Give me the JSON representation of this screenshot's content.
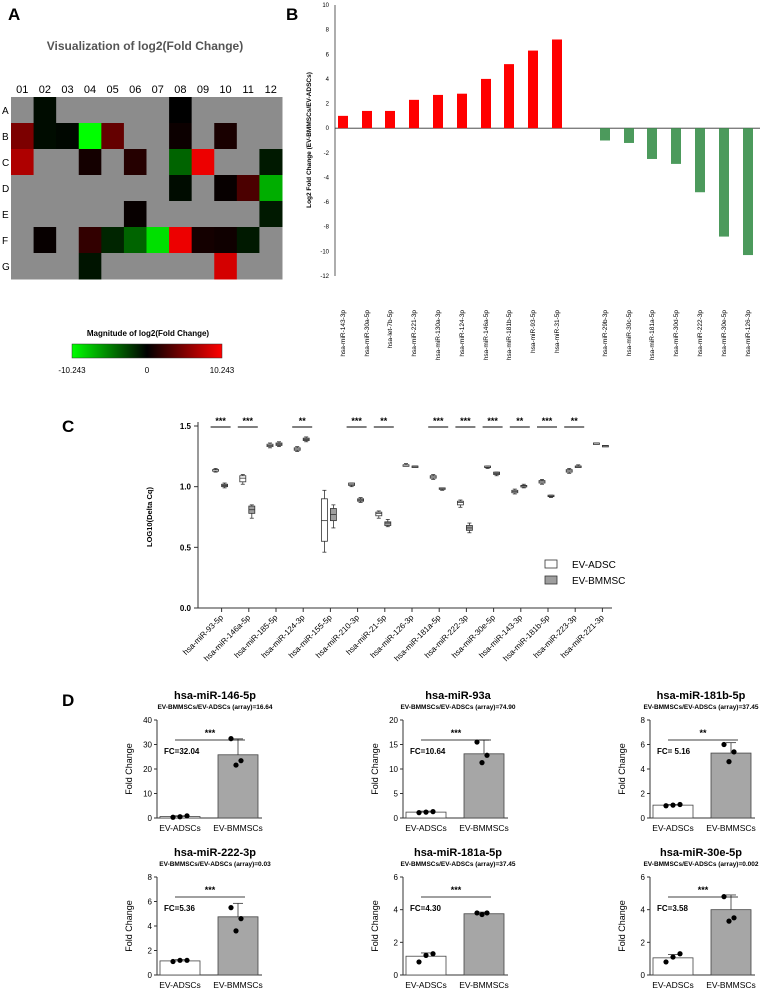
{
  "panel_labels": {
    "a": "A",
    "b": "B",
    "c": "C",
    "d": "D"
  },
  "chart_data": [
    {
      "type": "heatmap",
      "panel": "A",
      "title": "Visualization of log2(Fold Change)",
      "columns": [
        "01",
        "02",
        "03",
        "04",
        "05",
        "06",
        "07",
        "08",
        "09",
        "10",
        "11",
        "12"
      ],
      "rows": [
        "A",
        "B",
        "C",
        "D",
        "E",
        "F",
        "G"
      ],
      "values": [
        [
          null,
          -0.5,
          null,
          null,
          null,
          null,
          null,
          0,
          null,
          null,
          null,
          null
        ],
        [
          5,
          -0.5,
          -0.3,
          -10.243,
          4,
          null,
          null,
          0.5,
          null,
          1,
          null,
          null
        ],
        [
          7,
          null,
          null,
          0.8,
          null,
          1.5,
          null,
          -4,
          9.5,
          null,
          null,
          -1
        ],
        [
          null,
          null,
          null,
          null,
          null,
          null,
          null,
          -0.5,
          null,
          0.3,
          3,
          -7
        ],
        [
          null,
          null,
          null,
          null,
          null,
          0.3,
          null,
          null,
          null,
          null,
          null,
          -1
        ],
        [
          null,
          0.3,
          null,
          2,
          -1.5,
          -4,
          -9,
          9.5,
          0.8,
          0.6,
          -1,
          null
        ],
        [
          null,
          null,
          null,
          -0.8,
          null,
          null,
          null,
          null,
          null,
          8.5,
          null,
          null
        ]
      ],
      "legend_title": "Magnitude of log2(Fold Change)",
      "legend_min": "-10.243",
      "legend_mid": "0",
      "legend_max": "10.243",
      "colors": {
        "low": "#00ff00",
        "mid": "#000000",
        "high": "#ff0000",
        "na": "#8c8c8c"
      }
    },
    {
      "type": "bar",
      "panel": "B",
      "ylabel": "Log2 Fold Change (EV-BMMSCs/EV-ADSCs)",
      "ylim": [
        -12,
        10
      ],
      "yticks": [
        "10",
        "8",
        "6",
        "4",
        "2",
        "0",
        "-2",
        "-4",
        "-6",
        "-8",
        "-10",
        "-12"
      ],
      "categories": [
        "hsa-miR-143-3p",
        "hsa-miR-30a-5p",
        "hsa-let-7b-5p",
        "hsa-miR-221-3p",
        "hsa-miR-130a-3p",
        "hsa-miR-124-3p",
        "hsa-miR-146a-5p",
        "hsa-miR-181b-5p",
        "hsa-miR-93-5p",
        "hsa-miR-31-5p",
        "hsa-miR-29b-3p",
        "hsa-miR-30c-5p",
        "hsa-miR-181a-5p",
        "hsa-miR-30d-5p",
        "hsa-miR-222-3p",
        "hsa-miR-30e-5p",
        "hsa-miR-126-3p"
      ],
      "values": [
        1.0,
        1.4,
        1.4,
        2.3,
        2.7,
        2.8,
        4.0,
        5.2,
        6.3,
        7.2,
        -1.0,
        -1.2,
        -2.5,
        -2.9,
        -5.2,
        -8.8,
        -10.3
      ],
      "colors": {
        "up": "#ff0000",
        "down": "#4c9a5c"
      }
    },
    {
      "type": "box",
      "panel": "C",
      "ylabel": "LOG10(Delta Cq)",
      "ylim": [
        0.0,
        1.5
      ],
      "yticks": [
        "0.0",
        "0.5",
        "1.0",
        "1.5"
      ],
      "categories": [
        "hsa-miR-93-5p",
        "hsa-miR-146a-5p",
        "hsa-miR-185-5p",
        "hsa-miR-124-3p",
        "hsa-miR-155-5p",
        "hsa-miR-210-3p",
        "hsa-miR-21-5p",
        "hsa-miR-126-3p",
        "hsa-miR-181a-5p",
        "hsa-miR-222-3p",
        "hsa-miR-30e-5p",
        "hsa-miR-143-3p",
        "hsa-miR-181b-5p",
        "hsa-miR-223-3p",
        "hsa-miR-221-3p"
      ],
      "series": [
        {
          "name": "EV-ADSC",
          "color": "#ffffff",
          "boxes": [
            [
              1.12,
              1.13,
              1.14,
              1.14,
              1.15
            ],
            [
              1.02,
              1.04,
              1.07,
              1.09,
              1.1
            ],
            [
              1.32,
              1.33,
              1.34,
              1.35,
              1.36
            ],
            [
              1.29,
              1.3,
              1.31,
              1.32,
              1.33
            ],
            [
              0.46,
              0.55,
              0.72,
              0.9,
              0.97
            ],
            [
              1.0,
              1.01,
              1.02,
              1.03,
              1.03
            ],
            [
              0.74,
              0.76,
              0.78,
              0.79,
              0.8
            ],
            [
              1.17,
              1.17,
              1.18,
              1.18,
              1.19
            ],
            [
              1.06,
              1.07,
              1.08,
              1.09,
              1.1
            ],
            [
              0.83,
              0.85,
              0.87,
              0.88,
              0.89
            ],
            [
              1.15,
              1.16,
              1.16,
              1.17,
              1.17
            ],
            [
              0.94,
              0.95,
              0.96,
              0.97,
              0.98
            ],
            [
              1.02,
              1.03,
              1.04,
              1.05,
              1.06
            ],
            [
              1.11,
              1.12,
              1.13,
              1.14,
              1.15
            ],
            [
              1.36,
              1.36,
              1.36,
              1.36,
              1.36
            ]
          ]
        },
        {
          "name": "EV-BMMSC",
          "color": "#9e9e9e",
          "boxes": [
            [
              0.99,
              1.0,
              1.01,
              1.02,
              1.03
            ],
            [
              0.74,
              0.78,
              0.81,
              0.84,
              0.85
            ],
            [
              1.33,
              1.34,
              1.35,
              1.36,
              1.37
            ],
            [
              1.37,
              1.38,
              1.39,
              1.4,
              1.41
            ],
            [
              0.66,
              0.72,
              0.77,
              0.82,
              0.85
            ],
            [
              0.87,
              0.88,
              0.89,
              0.9,
              0.91
            ],
            [
              0.67,
              0.68,
              0.7,
              0.71,
              0.73
            ],
            [
              1.16,
              1.16,
              1.17,
              1.17,
              1.17
            ],
            [
              0.97,
              0.98,
              0.98,
              0.99,
              0.99
            ],
            [
              0.62,
              0.64,
              0.66,
              0.68,
              0.7
            ],
            [
              1.09,
              1.1,
              1.11,
              1.12,
              1.12
            ],
            [
              0.99,
              1.0,
              1.01,
              1.01,
              1.02
            ],
            [
              0.91,
              0.92,
              0.92,
              0.93,
              0.93
            ],
            [
              1.16,
              1.16,
              1.17,
              1.17,
              1.18
            ],
            [
              1.33,
              1.33,
              1.34,
              1.34,
              1.34
            ]
          ]
        }
      ],
      "significance": [
        "***",
        "***",
        "",
        "**",
        "",
        "***",
        "**",
        "",
        "***",
        "***",
        "***",
        "**",
        "***",
        "**",
        ""
      ]
    },
    {
      "type": "bar",
      "panel": "D1",
      "title": "hsa-miR-146-5p",
      "subtitle": "EV-BMMSCs/EV-ADSCs (array)=16.64",
      "ylabel": "Fold Change",
      "ylim": [
        0,
        40
      ],
      "yticks": [
        "0",
        "10",
        "20",
        "30",
        "40"
      ],
      "categories": [
        "EV-ADSCs",
        "EV-BMMSCs"
      ],
      "values": [
        0.6,
        25.8
      ],
      "errors": [
        0.3,
        6.5
      ],
      "points": [
        [
          0.3,
          0.5,
          0.9
        ],
        [
          21.6,
          23.4,
          32.4
        ]
      ],
      "fc_text": "FC=32.04",
      "significance": "***"
    },
    {
      "type": "bar",
      "panel": "D2",
      "title": "hsa-miR-93a",
      "subtitle": "EV-BMMSCs/EV-ADSCs (array)=74.90",
      "ylabel": "Fold Change",
      "ylim": [
        0,
        20
      ],
      "yticks": [
        "0",
        "5",
        "10",
        "15",
        "20"
      ],
      "categories": [
        "EV-ADSCs",
        "EV-BMMSCs"
      ],
      "values": [
        1.2,
        13.1
      ],
      "errors": [
        0.2,
        2.8
      ],
      "points": [
        [
          1.1,
          1.2,
          1.3
        ],
        [
          11.3,
          12.8,
          15.5
        ]
      ],
      "fc_text": "FC=10.64",
      "significance": "***"
    },
    {
      "type": "bar",
      "panel": "D3",
      "title": "hsa-miR-181b-5p",
      "subtitle": "EV-BMMSCs/EV-ADSCs (array)=37.45",
      "ylabel": "Fold Change",
      "ylim": [
        0,
        8
      ],
      "yticks": [
        "0",
        "2",
        "4",
        "6",
        "8"
      ],
      "categories": [
        "EV-ADSCs",
        "EV-BMMSCs"
      ],
      "values": [
        1.05,
        5.3
      ],
      "errors": [
        0.05,
        0.85
      ],
      "points": [
        [
          1.0,
          1.05,
          1.1
        ],
        [
          4.6,
          5.4,
          6.0
        ]
      ],
      "fc_text": "FC= 5.16",
      "significance": "**"
    },
    {
      "type": "bar",
      "panel": "D4",
      "title": "hsa-miR-222-3p",
      "subtitle": "EV-BMMSCs/EV-ADSCs (array)=0.03",
      "ylabel": "Fold Change",
      "ylim": [
        0,
        8
      ],
      "yticks": [
        "0",
        "2",
        "4",
        "6",
        "8"
      ],
      "categories": [
        "EV-ADSCs",
        "EV-BMMSCs"
      ],
      "values": [
        1.15,
        4.75
      ],
      "errors": [
        0.1,
        1.1
      ],
      "points": [
        [
          1.1,
          1.2,
          1.2
        ],
        [
          3.6,
          4.6,
          5.5
        ]
      ],
      "fc_text": "FC=5.36",
      "significance": "***"
    },
    {
      "type": "bar",
      "panel": "D5",
      "title": "hsa-miR-181a-5p",
      "subtitle": "EV-BMMSCs/EV-ADSCs (array)=37.45",
      "ylabel": "Fold Change",
      "ylim": [
        0,
        6
      ],
      "yticks": [
        "0",
        "2",
        "4",
        "6"
      ],
      "categories": [
        "EV-ADSCs",
        "EV-BMMSCs"
      ],
      "values": [
        1.15,
        3.75
      ],
      "errors": [
        0.2,
        0.1
      ],
      "points": [
        [
          0.8,
          1.2,
          1.3
        ],
        [
          3.7,
          3.8,
          3.8
        ]
      ],
      "fc_text": "FC=4.30",
      "significance": "***"
    },
    {
      "type": "bar",
      "panel": "D6",
      "title": "hsa-miR-30e-5p",
      "subtitle": "EV-BMMSCs/EV-ADSCs (array)=0.002",
      "ylabel": "Fold Change",
      "ylim": [
        0,
        6
      ],
      "yticks": [
        "0",
        "2",
        "4",
        "6"
      ],
      "categories": [
        "EV-ADSCs",
        "EV-BMMSCs"
      ],
      "values": [
        1.05,
        4.0
      ],
      "errors": [
        0.2,
        0.9
      ],
      "points": [
        [
          0.8,
          1.1,
          1.3
        ],
        [
          3.3,
          3.5,
          4.8
        ]
      ],
      "fc_text": "FC=3.58",
      "significance": "***"
    }
  ]
}
